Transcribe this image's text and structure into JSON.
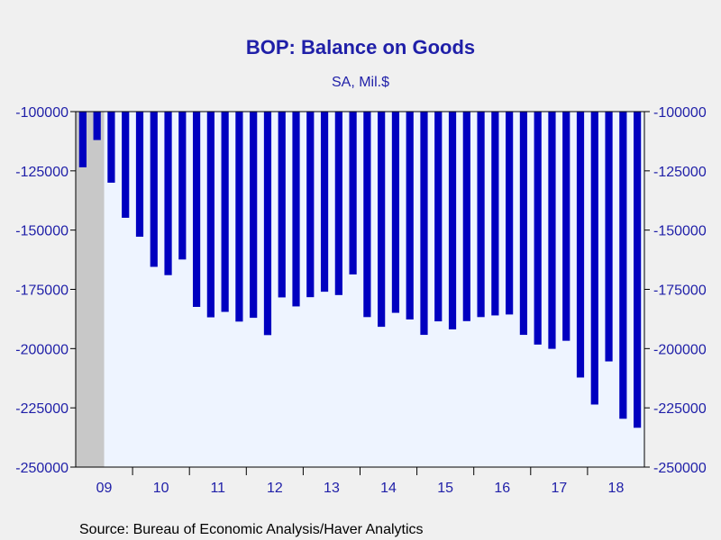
{
  "chart_data": {
    "type": "bar",
    "title": "BOP: Balance on Goods",
    "subtitle": "SA, Mil.$",
    "source": "Source:  Bureau of Economic Analysis/Haver Analytics",
    "ylim": [
      -250000,
      -100000
    ],
    "yticks": [
      -100000,
      -125000,
      -150000,
      -175000,
      -200000,
      -225000,
      -250000
    ],
    "ytick_labels": [
      "-100000",
      "-125000",
      "-150000",
      "-175000",
      "-200000",
      "-225000",
      "-250000"
    ],
    "x_year_labels": [
      "09",
      "10",
      "11",
      "12",
      "13",
      "14",
      "15",
      "16",
      "17",
      "18"
    ],
    "frequency": "quarterly",
    "x_start": "2009-Q1",
    "bar_color": "#0000c0",
    "recession_shading": {
      "start": "2009-Q1",
      "end": "2009-Q2",
      "color": "#c8c8c8"
    },
    "values": [
      -123500,
      -112000,
      -130000,
      -144800,
      -152800,
      -165500,
      -169000,
      -162400,
      -182400,
      -186800,
      -184500,
      -188600,
      -187000,
      -194300,
      -178400,
      -182200,
      -178300,
      -176000,
      -177400,
      -168700,
      -186700,
      -190800,
      -184900,
      -187700,
      -194200,
      -188500,
      -191900,
      -188400,
      -186700,
      -186000,
      -185600,
      -194200,
      -198300,
      -200100,
      -196700,
      -212200,
      -223600,
      -205400,
      -229600,
      -233400
    ]
  }
}
